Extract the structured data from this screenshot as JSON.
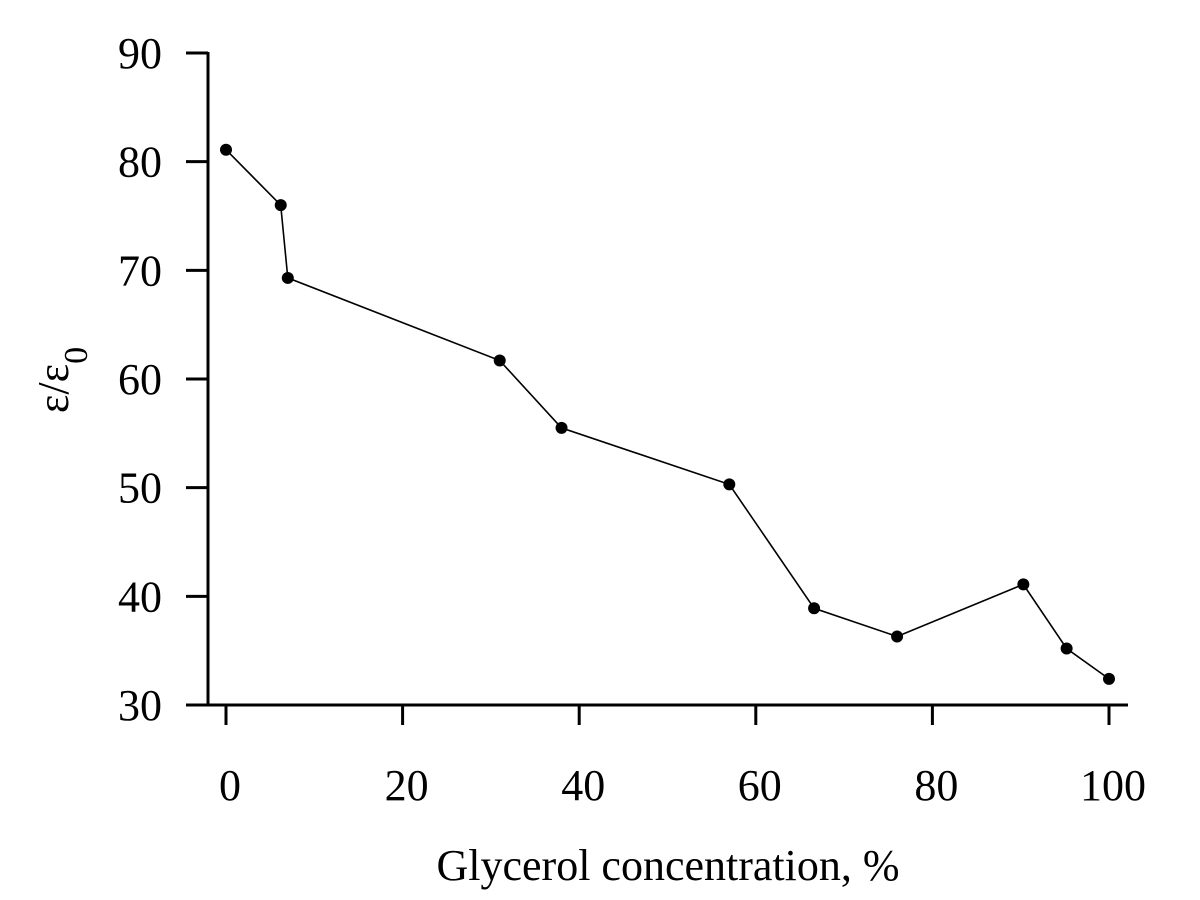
{
  "chart_data": {
    "type": "line",
    "title": "",
    "xlabel": "Glycerol concentration, %",
    "ylabel": "ε/ε",
    "ylabel_subscript": "0",
    "xlim": [
      -2,
      102
    ],
    "ylim": [
      30,
      90
    ],
    "xticks": [
      0,
      20,
      40,
      60,
      80,
      100
    ],
    "yticks": [
      30,
      40,
      50,
      60,
      70,
      80,
      90
    ],
    "grid": false,
    "legend": "none",
    "series": [
      {
        "color": "#000000",
        "marker": "circle",
        "x": [
          0,
          6.2,
          7.0,
          31.0,
          38.0,
          57.0,
          66.6,
          76.0,
          90.3,
          95.2,
          100.0
        ],
        "y": [
          81.1,
          76.0,
          69.3,
          61.7,
          55.5,
          50.3,
          38.9,
          36.3,
          41.1,
          35.2,
          32.4
        ]
      }
    ]
  }
}
